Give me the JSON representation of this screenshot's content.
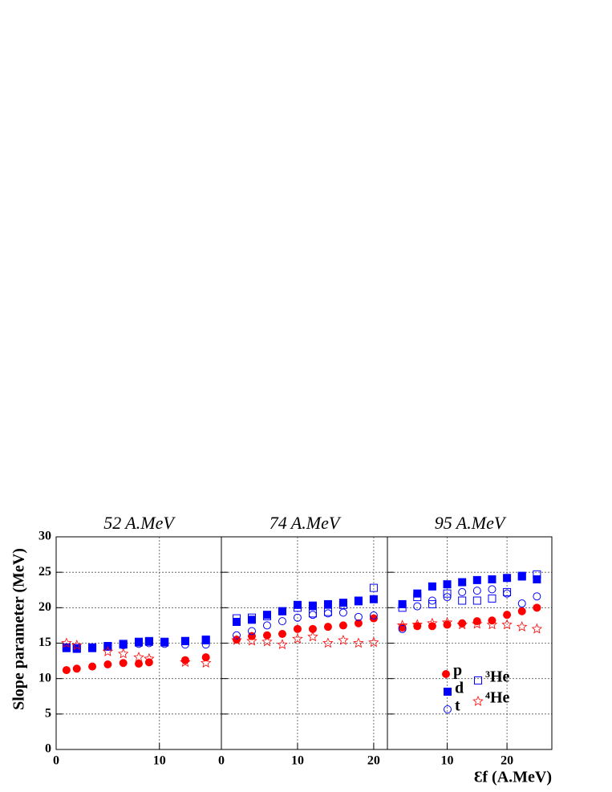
{
  "chart_data": [
    {
      "type": "scatter",
      "title": "52 A.MeV",
      "ylabel": "Slope parameter (MeV)",
      "xlim": [
        0,
        16
      ],
      "xticks": [
        0,
        10
      ],
      "ylim": [
        0,
        30
      ],
      "yticks": [
        0,
        5,
        10,
        15,
        20,
        25,
        30
      ],
      "grid": true,
      "series": [
        {
          "color": "#ff0000",
          "marker": "filled-circle",
          "x": [
            1,
            2,
            3.5,
            5,
            6.5,
            8,
            9,
            12.5,
            14.5
          ],
          "values": [
            11.2,
            11.4,
            11.7,
            12.0,
            12.2,
            12.1,
            12.3,
            12.6,
            13.0
          ]
        },
        {
          "color": "#0000ff",
          "marker": "open-square",
          "x": [
            1,
            2,
            3.5,
            5,
            6.5,
            8,
            9,
            10.5,
            12.5,
            14.5
          ],
          "values": [
            14.4,
            14.3,
            14.4,
            14.6,
            14.9,
            15.2,
            15.3,
            15.2,
            15.3,
            15.5
          ]
        },
        {
          "color": "#0000ff",
          "marker": "open-circle",
          "x": [
            1,
            2,
            3.5,
            5,
            6.5,
            8,
            9,
            10.5,
            12.5,
            14.5
          ],
          "values": [
            14.3,
            14.2,
            14.3,
            14.5,
            14.7,
            14.9,
            15.0,
            14.9,
            14.8,
            14.8
          ]
        },
        {
          "color": "#0000ff",
          "marker": "filled-square",
          "x": [
            1,
            2,
            3.5,
            5,
            6.5,
            8,
            9,
            10.5,
            12.5,
            14.5
          ],
          "values": [
            14.3,
            14.2,
            14.3,
            14.5,
            14.8,
            15.1,
            15.2,
            15.1,
            15.3,
            15.4
          ]
        },
        {
          "color": "#ff0000",
          "marker": "open-star",
          "x": [
            1,
            2,
            5,
            6.5,
            8,
            9,
            12.5,
            14.5
          ],
          "values": [
            15.0,
            14.7,
            13.8,
            13.5,
            13.0,
            12.8,
            12.3,
            12.2
          ]
        }
      ]
    },
    {
      "type": "scatter",
      "title": "74 A.MeV",
      "xlim": [
        0,
        21.8
      ],
      "xticks": [
        0,
        10,
        20
      ],
      "ylim": [
        0,
        30
      ],
      "yticks": [
        0,
        5,
        10,
        15,
        20,
        25,
        30
      ],
      "grid": true,
      "series": [
        {
          "color": "#ff0000",
          "marker": "filled-circle",
          "x": [
            2,
            4,
            6,
            8,
            10,
            12,
            14,
            16,
            18,
            20
          ],
          "values": [
            15.5,
            16.0,
            16.1,
            16.3,
            17.0,
            17.0,
            17.3,
            17.5,
            17.8,
            18.5
          ]
        },
        {
          "color": "#0000ff",
          "marker": "open-square",
          "x": [
            2,
            4,
            6,
            8,
            10,
            12,
            14,
            16,
            18,
            20
          ],
          "values": [
            18.5,
            18.6,
            18.8,
            19.5,
            20.0,
            19.2,
            19.4,
            20.4,
            21.0,
            22.8
          ]
        },
        {
          "color": "#0000ff",
          "marker": "open-circle",
          "x": [
            2,
            4,
            6,
            8,
            10,
            12,
            14,
            16,
            18,
            20
          ],
          "values": [
            16.1,
            16.7,
            17.5,
            18.1,
            18.6,
            19.0,
            19.2,
            19.3,
            18.7,
            18.9
          ]
        },
        {
          "color": "#0000ff",
          "marker": "filled-square",
          "x": [
            2,
            4,
            6,
            8,
            10,
            12,
            14,
            16,
            18,
            20
          ],
          "values": [
            18.0,
            18.3,
            19.0,
            19.5,
            20.4,
            20.3,
            20.5,
            20.7,
            20.9,
            21.2
          ]
        },
        {
          "color": "#ff0000",
          "marker": "open-star",
          "x": [
            2,
            4,
            6,
            8,
            10,
            12,
            14,
            16,
            18,
            20
          ],
          "values": [
            15.4,
            15.3,
            15.2,
            14.8,
            15.6,
            15.9,
            15.0,
            15.4,
            15.0,
            15.1
          ]
        }
      ]
    },
    {
      "type": "scatter",
      "title": "95 A.MeV",
      "xlabel": "Ɛf (A.MeV)",
      "xlim": [
        0,
        27.5
      ],
      "xticks": [
        10,
        20
      ],
      "ylim": [
        0,
        30
      ],
      "yticks": [
        0,
        5,
        10,
        15,
        20,
        25,
        30
      ],
      "grid": true,
      "series": [
        {
          "name": "p",
          "color": "#ff0000",
          "marker": "filled-circle",
          "x": [
            2.5,
            5,
            7.5,
            10,
            12.5,
            15,
            17.5,
            20,
            22.5,
            25
          ],
          "values": [
            17.2,
            17.4,
            17.4,
            17.6,
            17.8,
            18.1,
            18.2,
            19.0,
            19.5,
            20.0
          ]
        },
        {
          "name": "³He",
          "color": "#0000ff",
          "marker": "open-square",
          "x": [
            2.5,
            5,
            7.5,
            10,
            12.5,
            15,
            17.5,
            20,
            22.5,
            25
          ],
          "values": [
            20.0,
            21.5,
            20.5,
            22.0,
            21.0,
            21.0,
            21.3,
            22.2,
            24.5,
            24.7
          ]
        },
        {
          "name": "t",
          "color": "#0000ff",
          "marker": "open-circle",
          "x": [
            2.5,
            5,
            7.5,
            10,
            12.5,
            15,
            17.5,
            20,
            22.5,
            25
          ],
          "values": [
            17.0,
            20.2,
            21.0,
            21.5,
            22.2,
            22.4,
            22.6,
            22.0,
            20.6,
            21.6
          ]
        },
        {
          "name": "d",
          "color": "#0000ff",
          "marker": "filled-square",
          "x": [
            2.5,
            5,
            7.5,
            10,
            12.5,
            15,
            17.5,
            20,
            22.5,
            25
          ],
          "values": [
            20.5,
            22.0,
            23.0,
            23.3,
            23.6,
            23.9,
            24.0,
            24.2,
            24.4,
            24.0
          ]
        },
        {
          "name": "⁴He",
          "color": "#ff0000",
          "marker": "open-star",
          "x": [
            2.5,
            5,
            7.5,
            10,
            12.5,
            15,
            17.5,
            20,
            22.5,
            25
          ],
          "values": [
            17.5,
            17.6,
            17.8,
            17.9,
            17.6,
            17.7,
            17.6,
            17.6,
            17.3,
            17.0
          ]
        }
      ]
    }
  ]
}
